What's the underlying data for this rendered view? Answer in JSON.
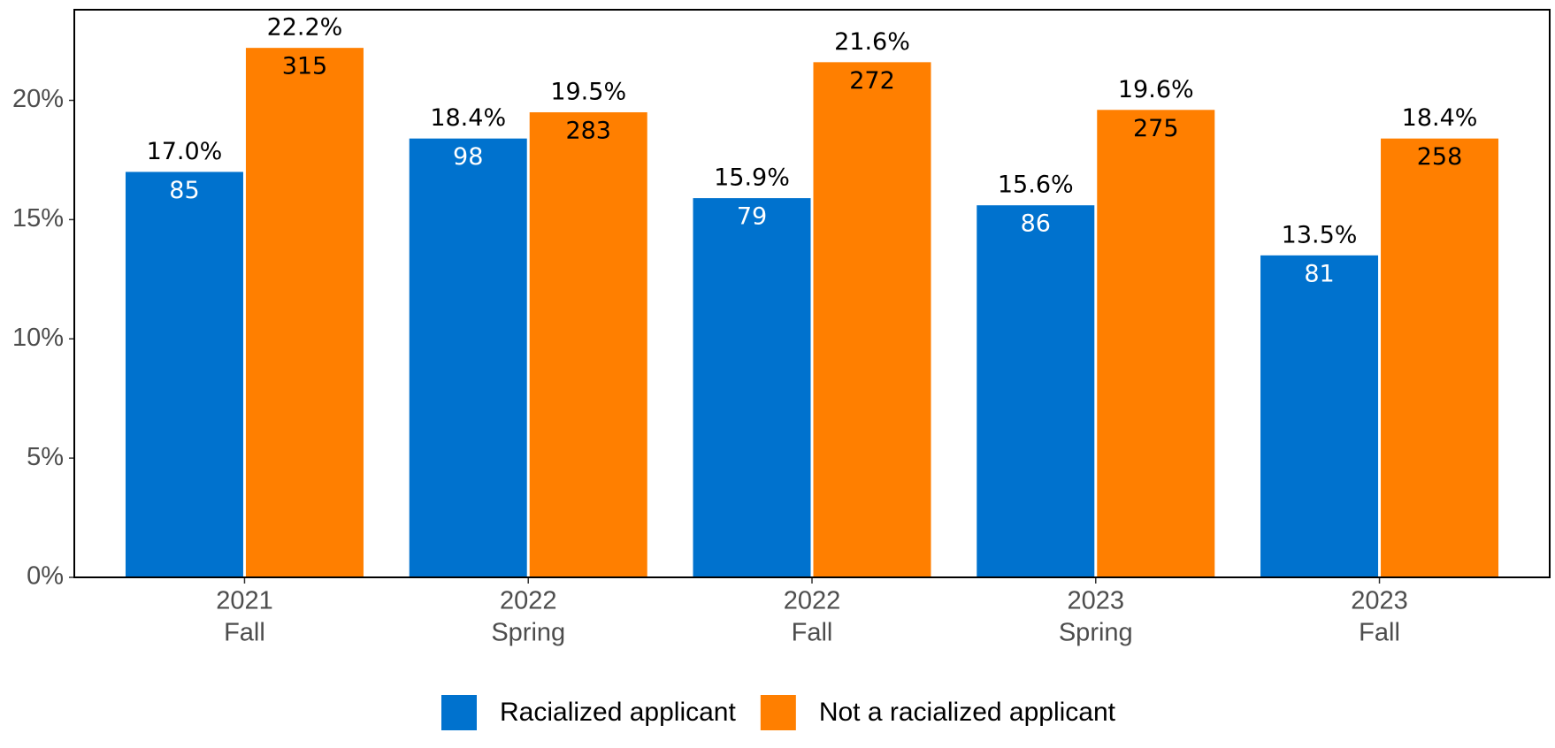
{
  "chart_data": {
    "type": "bar",
    "categories": [
      [
        "2021",
        "Fall"
      ],
      [
        "2022",
        "Spring"
      ],
      [
        "2022",
        "Fall"
      ],
      [
        "2023",
        "Spring"
      ],
      [
        "2023",
        "Fall"
      ]
    ],
    "series": [
      {
        "name": "Racialized applicant",
        "color": "#0072ce",
        "values": [
          17.0,
          18.4,
          15.9,
          15.6,
          13.5
        ],
        "value_labels": [
          "17.0%",
          "18.4%",
          "15.9%",
          "15.6%",
          "13.5%"
        ],
        "counts": [
          85,
          98,
          79,
          86,
          81
        ]
      },
      {
        "name": "Not a racialized applicant",
        "color": "#ff7f00",
        "values": [
          22.2,
          19.5,
          21.6,
          19.6,
          18.4
        ],
        "value_labels": [
          "22.2%",
          "19.5%",
          "21.6%",
          "19.6%",
          "18.4%"
        ],
        "counts": [
          315,
          283,
          272,
          275,
          258
        ]
      }
    ],
    "ylim": [
      0,
      23.8
    ],
    "yticks": [
      {
        "value": 0,
        "label": "0%"
      },
      {
        "value": 5,
        "label": "5%"
      },
      {
        "value": 10,
        "label": "10%"
      },
      {
        "value": 15,
        "label": "15%"
      },
      {
        "value": 20,
        "label": "20%"
      }
    ],
    "legend": "bottom"
  }
}
